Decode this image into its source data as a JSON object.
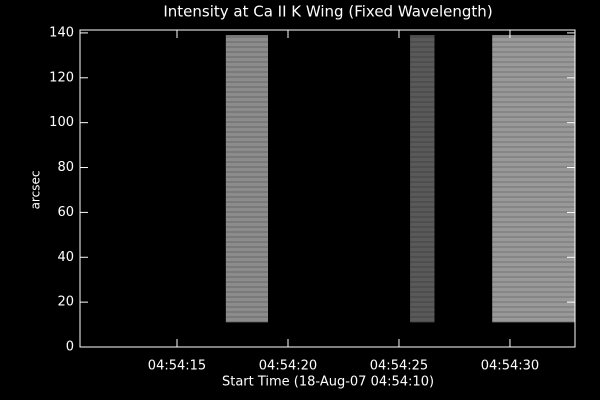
{
  "chart_data": {
    "type": "image",
    "title": "Intensity at Ca II K Wing (Fixed Wavelength)",
    "xlabel": "Start Time (18-Aug-07 04:54:10)",
    "ylabel": "arcsec",
    "xlim": [
      0.63,
      22.93
    ],
    "ylim": [
      0,
      141.3
    ],
    "xticks": [
      {
        "value": 5,
        "label": "04:54:15"
      },
      {
        "value": 10,
        "label": "04:54:20"
      },
      {
        "value": 15,
        "label": "04:54:25"
      },
      {
        "value": 20,
        "label": "04:54:30"
      }
    ],
    "yticks": [
      0,
      20,
      40,
      60,
      80,
      100,
      120,
      140
    ],
    "color": "#ffffff",
    "bands": [
      {
        "x": [
          7.2,
          9.1
        ],
        "y": [
          11,
          139
        ],
        "intensity": 0.55
      },
      {
        "x": [
          15.5,
          16.6
        ],
        "y": [
          11,
          139
        ],
        "intensity": 0.35
      },
      {
        "x": [
          19.2,
          22.93
        ],
        "y": [
          11,
          139
        ],
        "intensity": 0.6
      }
    ]
  }
}
